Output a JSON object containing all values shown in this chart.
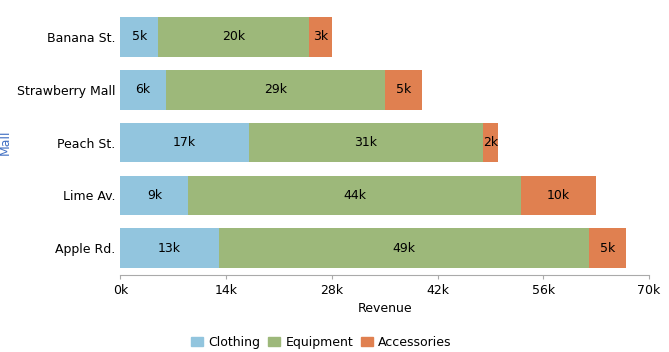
{
  "malls": [
    "Apple Rd.",
    "Lime Av.",
    "Peach St.",
    "Strawberry Mall",
    "Banana St."
  ],
  "clothing": [
    13000,
    9000,
    17000,
    6000,
    5000
  ],
  "equipment": [
    49000,
    44000,
    31000,
    29000,
    20000
  ],
  "accessories": [
    5000,
    10000,
    2000,
    5000,
    3000
  ],
  "clothing_color": "#92c5de",
  "equipment_color": "#9db87a",
  "accessories_color": "#e08050",
  "clothing_label": "Clothing",
  "equipment_label": "Equipment",
  "accessories_label": "Accessories",
  "xlabel": "Revenue",
  "ylabel": "Mall",
  "xlim": [
    0,
    70000
  ],
  "xticks": [
    0,
    14000,
    28000,
    42000,
    56000,
    70000
  ],
  "xtick_labels": [
    "0k",
    "14k",
    "28k",
    "42k",
    "56k",
    "70k"
  ],
  "bar_height": 0.75,
  "label_fontsize": 9,
  "tick_fontsize": 9,
  "background_color": "#ffffff"
}
